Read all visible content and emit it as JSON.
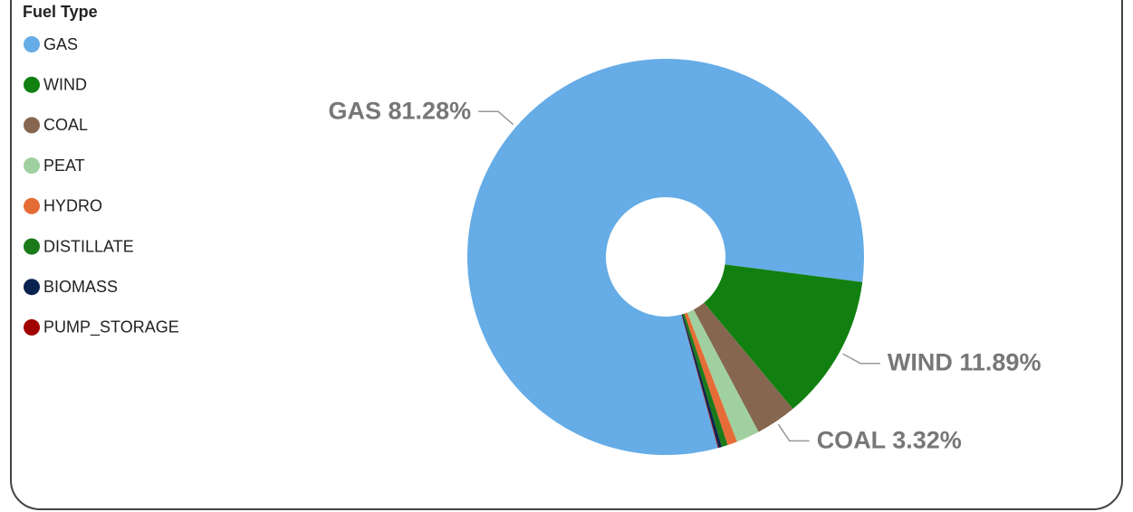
{
  "chart_data": {
    "type": "donut",
    "legend_title": "Fuel Type",
    "legend_position": "left",
    "categories": [
      "GAS",
      "WIND",
      "COAL",
      "PEAT",
      "HYDRO",
      "DISTILLATE",
      "BIOMASS",
      "PUMP_STORAGE"
    ],
    "values": [
      81.28,
      11.89,
      3.32,
      1.9,
      0.8,
      0.5,
      0.25,
      0.06
    ],
    "value_labels": [
      "81.28%",
      "11.89%",
      "3.32%",
      null,
      null,
      null,
      null,
      null
    ],
    "colors": [
      "#66ace6",
      "#118011",
      "#86664f",
      "#a0d0a0",
      "#e66c37",
      "#1a7a1a",
      "#0a2250",
      "#a00000"
    ]
  }
}
